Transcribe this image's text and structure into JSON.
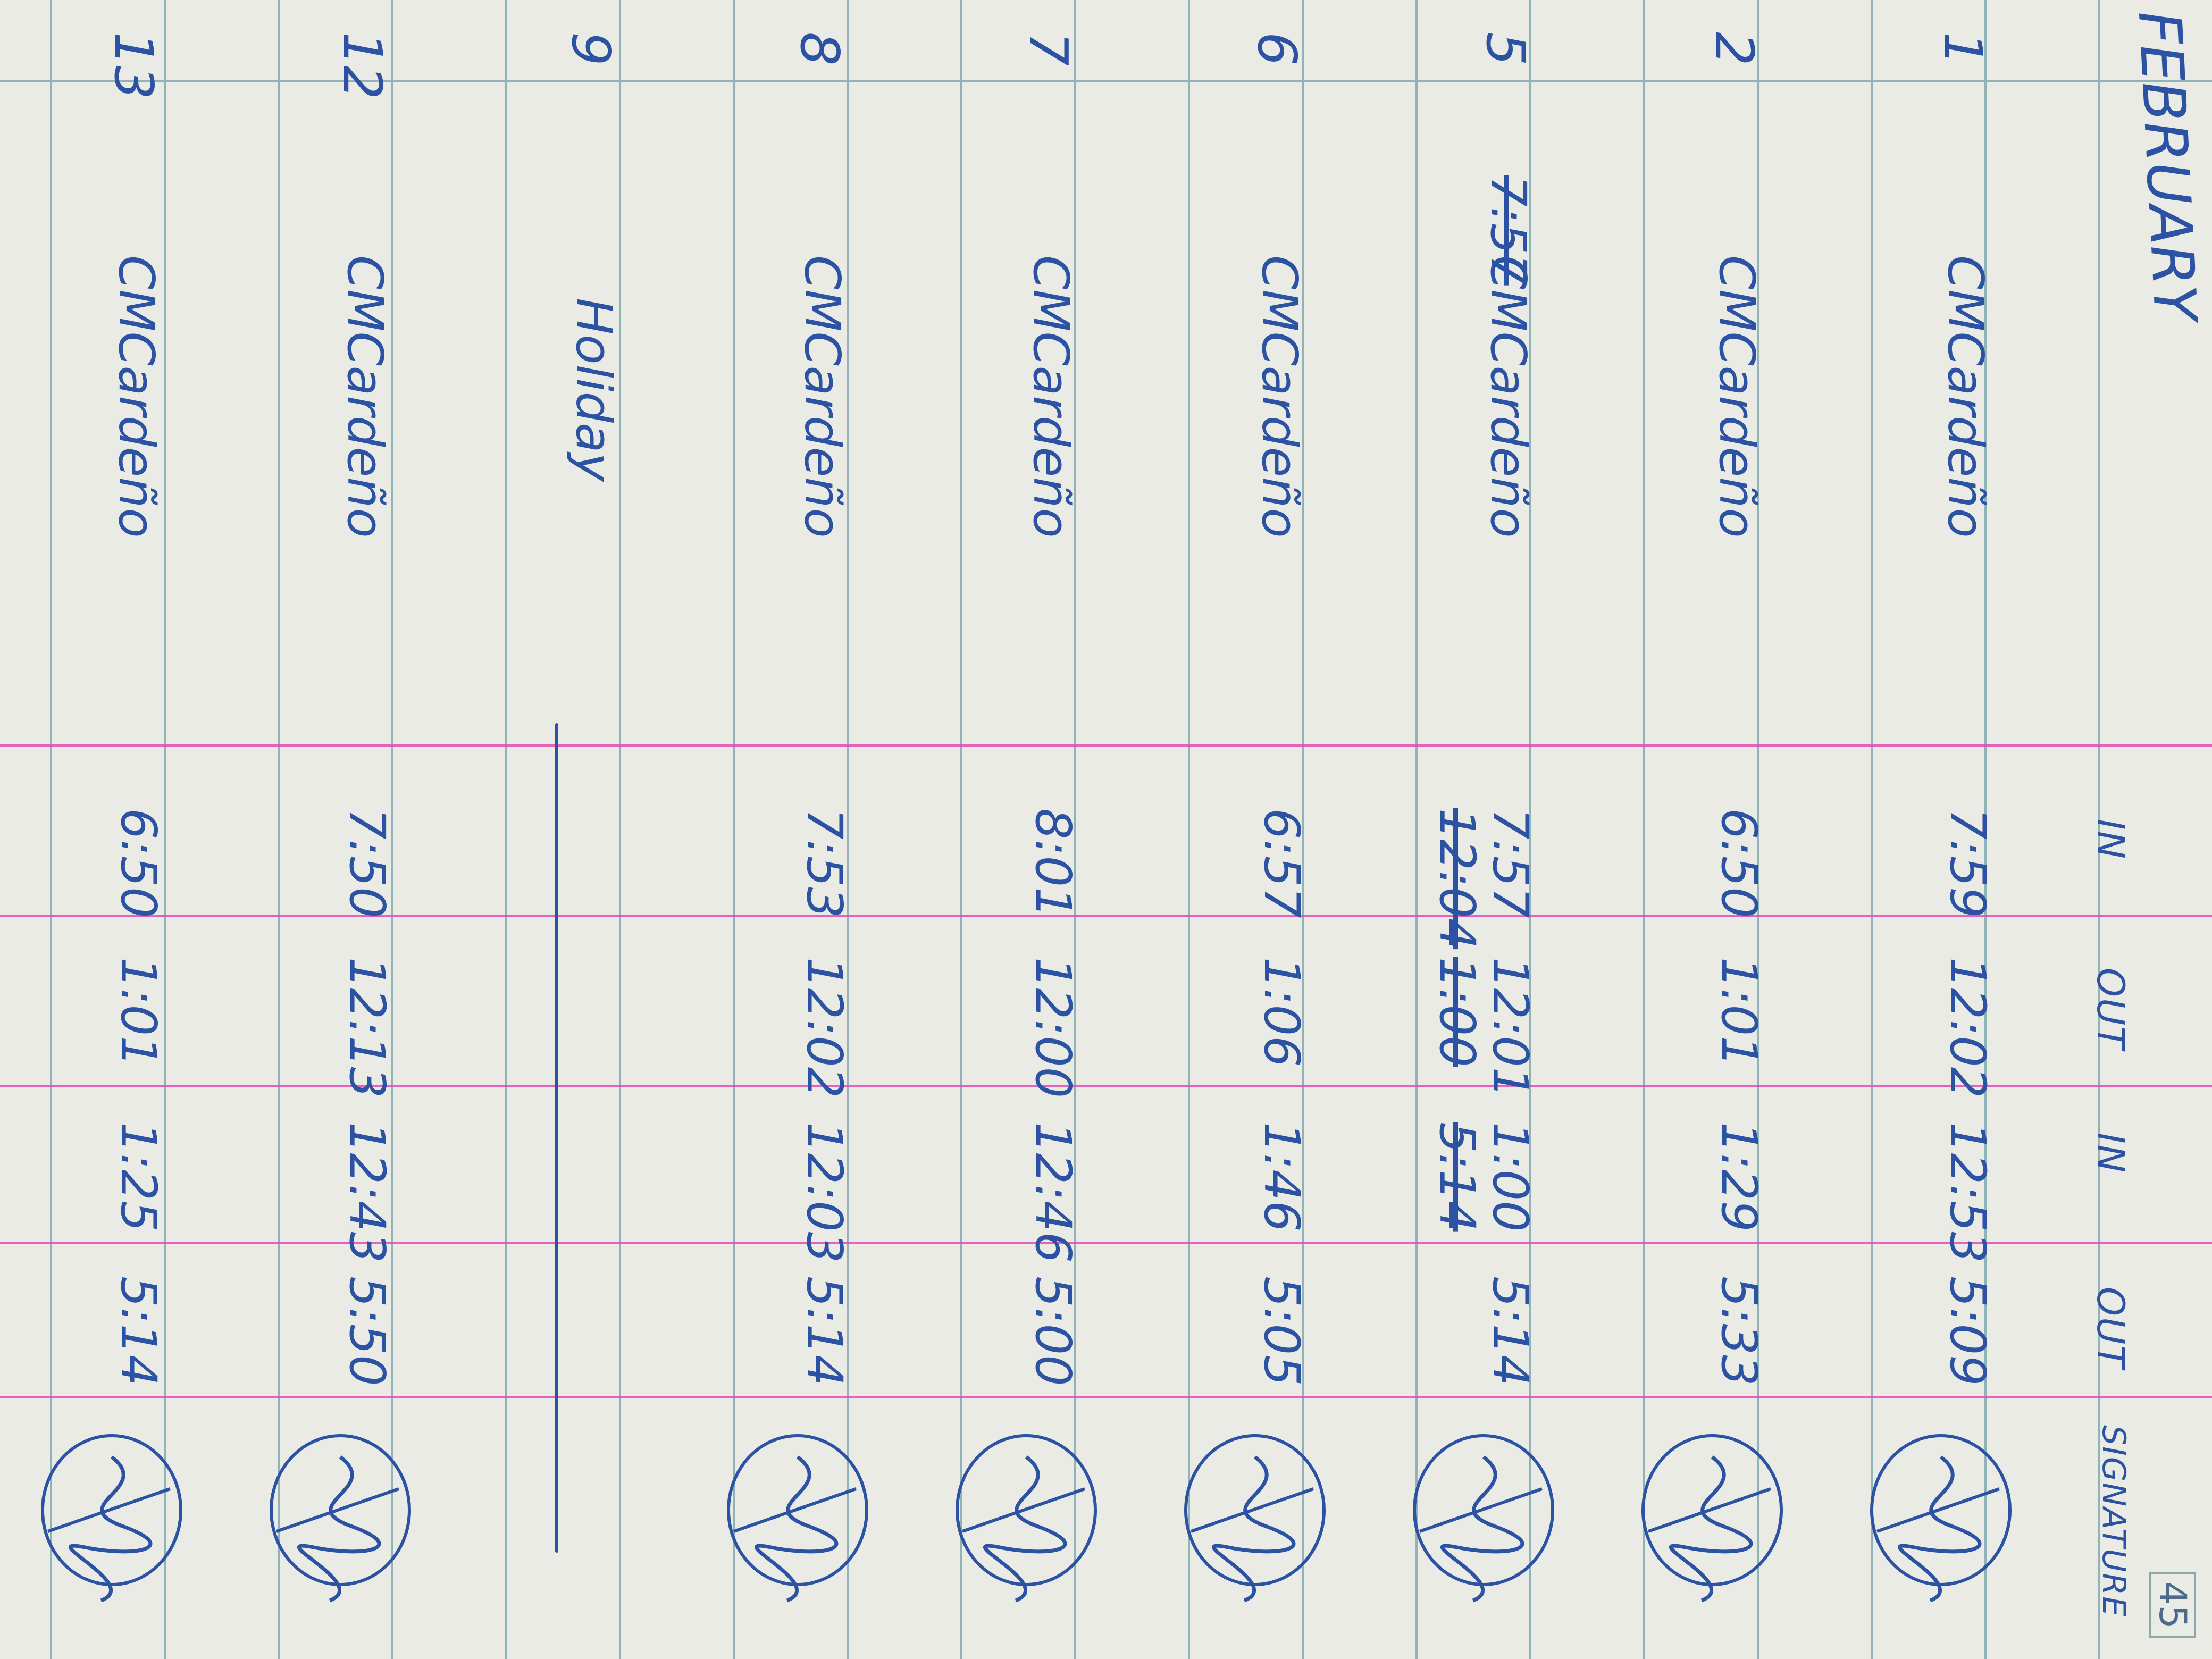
{
  "header": {
    "month": "FEBRUARY",
    "page_number": "45",
    "columns": [
      "IN",
      "OUT",
      "IN",
      "OUT",
      "SIGNATURE"
    ]
  },
  "ink_color": "#2c52a3",
  "rule_color": "#e04ab5",
  "rows": [
    {
      "date": "1",
      "name": "CMCardeño",
      "in1": [
        {
          "text": "7:59",
          "struck": false
        }
      ],
      "out1": [
        {
          "text": "12:02",
          "struck": false
        }
      ],
      "in2": [
        {
          "text": "12:53",
          "struck": false
        }
      ],
      "out2": [
        {
          "text": "5:09",
          "struck": false
        }
      ],
      "signed": true
    },
    {
      "date": "2",
      "name": "CMCardeño",
      "in1": [
        {
          "text": "6:50",
          "struck": false
        }
      ],
      "out1": [
        {
          "text": "1:01",
          "struck": false
        }
      ],
      "in2": [
        {
          "text": "1:29",
          "struck": false
        }
      ],
      "out2": [
        {
          "text": "5:33",
          "struck": false
        }
      ],
      "signed": true
    },
    {
      "date": "5",
      "name_prefix": "7:57",
      "name": "CMCardeño",
      "in1": [
        {
          "text": "7:57",
          "struck": false
        },
        {
          "text": "12:04",
          "struck": true
        }
      ],
      "out1": [
        {
          "text": "12:01",
          "struck": false
        },
        {
          "text": "1:00",
          "struck": true
        }
      ],
      "in2": [
        {
          "text": "1:00",
          "struck": false
        },
        {
          "text": "5:14",
          "struck": true
        }
      ],
      "out2": [
        {
          "text": "5:14",
          "struck": false
        }
      ],
      "signed": true
    },
    {
      "date": "6",
      "name": "CMCardeño",
      "in1": [
        {
          "text": "6:57",
          "struck": false
        }
      ],
      "out1": [
        {
          "text": "1:06",
          "struck": false
        }
      ],
      "in2": [
        {
          "text": "1:46",
          "struck": false
        }
      ],
      "out2": [
        {
          "text": "5:05",
          "struck": false
        }
      ],
      "signed": true
    },
    {
      "date": "7",
      "name": "CMCardeño",
      "in1": [
        {
          "text": "8:01",
          "struck": false
        }
      ],
      "out1": [
        {
          "text": "12:00",
          "struck": false
        }
      ],
      "in2": [
        {
          "text": "12:46",
          "struck": false
        }
      ],
      "out2": [
        {
          "text": "5:00",
          "struck": false
        }
      ],
      "signed": true
    },
    {
      "date": "8",
      "name": "CMCardeño",
      "in1": [
        {
          "text": "7:53",
          "struck": false
        }
      ],
      "out1": [
        {
          "text": "12:02",
          "struck": false
        }
      ],
      "in2": [
        {
          "text": "12:03",
          "struck": false
        }
      ],
      "out2": [
        {
          "text": "5:14",
          "struck": false
        }
      ],
      "signed": true
    },
    {
      "date": "9",
      "name": "Holiday",
      "holiday": true,
      "signed": false
    },
    {
      "date": "12",
      "name": "CMCardeño",
      "in1": [
        {
          "text": "7:50",
          "struck": false
        }
      ],
      "out1": [
        {
          "text": "12:13",
          "struck": false
        }
      ],
      "in2": [
        {
          "text": "12:43",
          "struck": false
        }
      ],
      "out2": [
        {
          "text": "5:50",
          "struck": false
        }
      ],
      "signed": true
    },
    {
      "date": "13",
      "name": "CMCardeño",
      "in1": [
        {
          "text": "6:50",
          "struck": false
        }
      ],
      "out1": [
        {
          "text": "1:01",
          "struck": false
        }
      ],
      "in2": [
        {
          "text": "1:25",
          "struck": false
        }
      ],
      "out2": [
        {
          "text": "5:14",
          "struck": false
        }
      ],
      "signed": true
    }
  ]
}
